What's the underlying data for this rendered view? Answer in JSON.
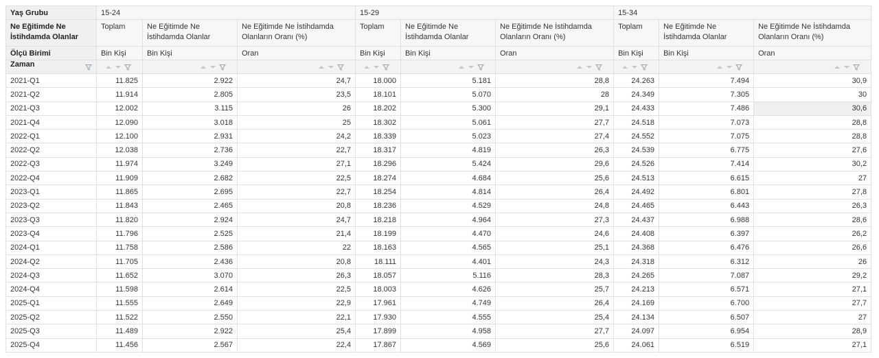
{
  "header": {
    "age_group_label": "Yaş Grubu",
    "groups": [
      "15-24",
      "15-29",
      "15-34"
    ],
    "indicator_label": "Ne Eğitimde Ne İstihdamda Olanlar",
    "indicators": [
      "Toplam",
      "Ne Eğitimde Ne İstihdamda Olanlar",
      "Ne Eğitimde Ne İstihdamda Olanların Oranı (%)",
      "Toplam",
      "Ne Eğitimde Ne İstihdamda Olanlar",
      "Ne Eğitimde Ne İstihdamda Olanların Oranı (%)",
      "Toplam",
      "Ne Eğitimde Ne İstihdamda Olanlar",
      "Ne Eğitimde Ne İstihdamda Olanların Oranı (%)"
    ],
    "unit_label": "Ölçü Birimi",
    "units": [
      "Bin Kişi",
      "Bin Kişi",
      "Oran",
      "Bin Kişi",
      "Bin Kişi",
      "Oran",
      "Bin Kişi",
      "Bin Kişi",
      "Oran"
    ],
    "time_label": "Zaman"
  },
  "table": {
    "rows": [
      [
        "2021-Q1",
        "11.825",
        "2.922",
        "24,7",
        "18.000",
        "5.181",
        "28,8",
        "24.263",
        "7.494",
        "30,9"
      ],
      [
        "2021-Q2",
        "11.914",
        "2.805",
        "23,5",
        "18.101",
        "5.070",
        "28",
        "24.349",
        "7.305",
        "30"
      ],
      [
        "2021-Q3",
        "12.002",
        "3.115",
        "26",
        "18.202",
        "5.300",
        "29,1",
        "24.433",
        "7.486",
        "30,6"
      ],
      [
        "2021-Q4",
        "12.090",
        "3.018",
        "25",
        "18.302",
        "5.061",
        "27,7",
        "24.518",
        "7.073",
        "28,8"
      ],
      [
        "2022-Q1",
        "12.100",
        "2.931",
        "24,2",
        "18.339",
        "5.023",
        "27,4",
        "24.552",
        "7.075",
        "28,8"
      ],
      [
        "2022-Q2",
        "12.038",
        "2.736",
        "22,7",
        "18.317",
        "4.819",
        "26,3",
        "24.539",
        "6.775",
        "27,6"
      ],
      [
        "2022-Q3",
        "11.974",
        "3.249",
        "27,1",
        "18.296",
        "5.424",
        "29,6",
        "24.526",
        "7.414",
        "30,2"
      ],
      [
        "2022-Q4",
        "11.909",
        "2.682",
        "22,5",
        "18.274",
        "4.684",
        "25,6",
        "24.513",
        "6.615",
        "27"
      ],
      [
        "2023-Q1",
        "11.865",
        "2.695",
        "22,7",
        "18.254",
        "4.814",
        "26,4",
        "24.492",
        "6.801",
        "27,8"
      ],
      [
        "2023-Q2",
        "11.843",
        "2.465",
        "20,8",
        "18.236",
        "4.529",
        "24,8",
        "24.465",
        "6.443",
        "26,3"
      ],
      [
        "2023-Q3",
        "11.820",
        "2.924",
        "24,7",
        "18.218",
        "4.964",
        "27,3",
        "24.437",
        "6.988",
        "28,6"
      ],
      [
        "2023-Q4",
        "11.796",
        "2.525",
        "21,4",
        "18.199",
        "4.470",
        "24,6",
        "24.408",
        "6.397",
        "26,2"
      ],
      [
        "2024-Q1",
        "11.758",
        "2.586",
        "22",
        "18.163",
        "4.565",
        "25,1",
        "24.368",
        "6.476",
        "26,6"
      ],
      [
        "2024-Q2",
        "11.705",
        "2.436",
        "20,8",
        "18.111",
        "4.401",
        "24,3",
        "24.318",
        "6.312",
        "26"
      ],
      [
        "2024-Q3",
        "11.652",
        "3.070",
        "26,3",
        "18.057",
        "5.116",
        "28,3",
        "24.265",
        "7.087",
        "29,2"
      ],
      [
        "2024-Q4",
        "11.598",
        "2.614",
        "22,5",
        "18.003",
        "4.626",
        "25,7",
        "24.213",
        "6.571",
        "27,1"
      ],
      [
        "2025-Q1",
        "11.555",
        "2.649",
        "22,9",
        "17.961",
        "4.749",
        "26,4",
        "24.169",
        "6.700",
        "27,7"
      ],
      [
        "2025-Q2",
        "11.522",
        "2.550",
        "22,1",
        "17.930",
        "4.555",
        "25,4",
        "24.134",
        "6.507",
        "27"
      ],
      [
        "2025-Q3",
        "11.489",
        "2.922",
        "25,4",
        "17.899",
        "4.958",
        "27,7",
        "24.097",
        "6.954",
        "28,9"
      ],
      [
        "2025-Q4",
        "11.456",
        "2.567",
        "22,4",
        "17.867",
        "4.569",
        "25,6",
        "24.061",
        "6.519",
        "27,1"
      ]
    ]
  }
}
